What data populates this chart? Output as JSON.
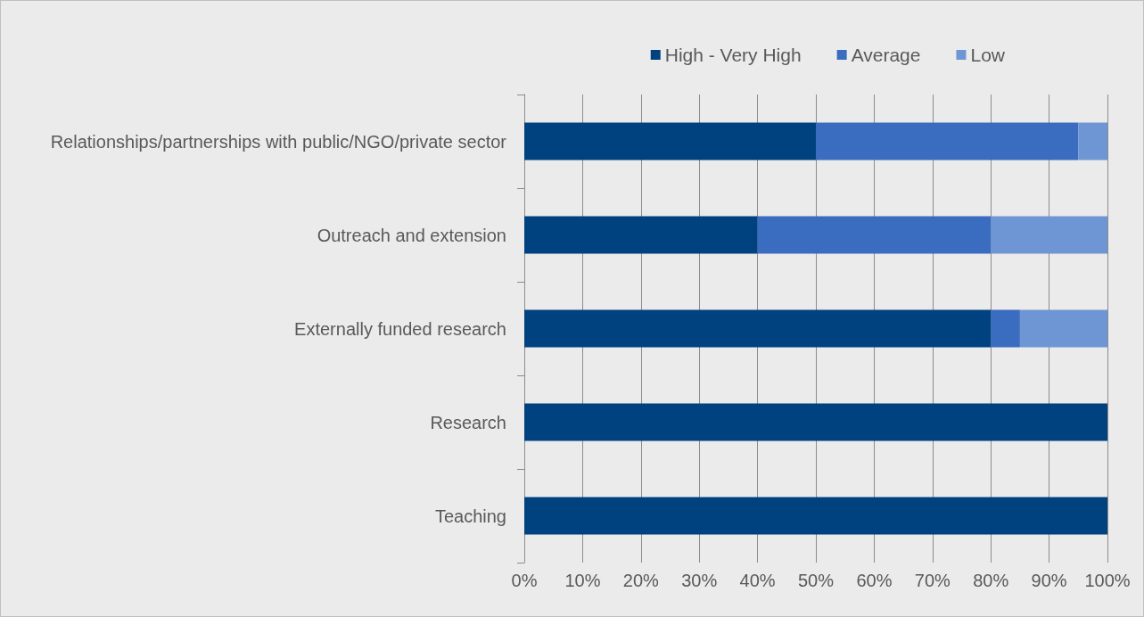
{
  "chart_data": {
    "type": "bar",
    "orientation": "horizontal",
    "stacked": true,
    "categories": [
      "Relationships/partnerships with public/NGO/private sector",
      "Outreach and extension",
      "Externally funded research",
      "Research",
      "Teaching"
    ],
    "series": [
      {
        "name": "High - Very High",
        "color": "#00427f",
        "values": [
          50,
          40,
          80,
          100,
          100
        ]
      },
      {
        "name": "Average",
        "color": "#3a6cbf",
        "values": [
          45,
          40,
          5,
          0,
          0
        ]
      },
      {
        "name": "Low",
        "color": "#6f96d4",
        "values": [
          5,
          20,
          15,
          0,
          0
        ]
      }
    ],
    "xlim": [
      0,
      100
    ],
    "xticks": [
      {
        "value": 0,
        "label": "0%"
      },
      {
        "value": 10,
        "label": "10%"
      },
      {
        "value": 20,
        "label": "20%"
      },
      {
        "value": 30,
        "label": "30%"
      },
      {
        "value": 40,
        "label": "40%"
      },
      {
        "value": 50,
        "label": "50%"
      },
      {
        "value": 60,
        "label": "60%"
      },
      {
        "value": 70,
        "label": "70%"
      },
      {
        "value": 80,
        "label": "80%"
      },
      {
        "value": 90,
        "label": "90%"
      },
      {
        "value": 100,
        "label": "100%"
      }
    ],
    "grid": "x",
    "legend": "top right"
  }
}
